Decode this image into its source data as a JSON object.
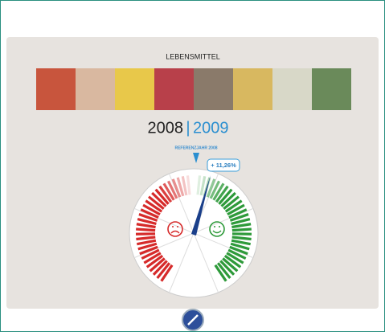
{
  "header": {
    "title": "LEBENSMITTEL"
  },
  "years": {
    "previous": "2008",
    "separator": "|",
    "current": "2009"
  },
  "gauge": {
    "reference_label": "REFERENZJAHR 2008",
    "value_label": "+ 11,26%"
  }
}
